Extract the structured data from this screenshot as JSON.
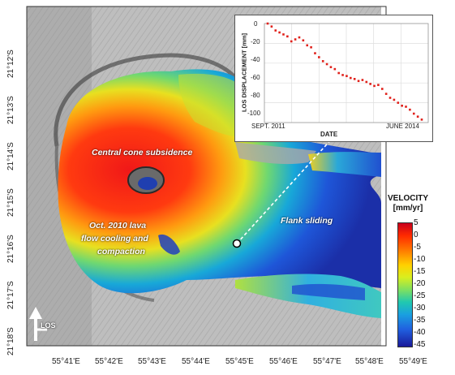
{
  "latitude_labels": [
    "21°12'S",
    "21°13'S",
    "21°14'S",
    "21°15'S",
    "21°16'S",
    "21°17'S",
    "21°18'S"
  ],
  "longitude_labels": [
    "55°41'E",
    "55°42'E",
    "55°43'E",
    "55°44'E",
    "55°45'E",
    "55°46'E",
    "55°47'E",
    "55°48'E",
    "55°49'E"
  ],
  "annotations": {
    "central_cone": "Central cone subsidence",
    "lava_flow_line1": "Oct. 2010 lava",
    "lava_flow_line2": "flow cooling and",
    "lava_flow_line3": "compaction",
    "flank_sliding": "Flank sliding"
  },
  "los_label": "LOS",
  "legend": {
    "title_line1": "VELOCITY",
    "title_line2": "[mm/yr]",
    "ticks": [
      "5",
      "0",
      "-5",
      "-10",
      "-15",
      "-20",
      "-25",
      "-30",
      "-35",
      "-40",
      "-45"
    ]
  },
  "inset": {
    "ylabel": "LOS DISPLACEMENT [mm]",
    "xlabel": "DATE",
    "x_start": "SEPT. 2011",
    "x_end": "JUNE 2014",
    "yticks": [
      "0",
      "-20",
      "-40",
      "-60",
      "-80",
      "-100"
    ]
  },
  "chart_data": {
    "type": "scatter",
    "xlabel": "DATE",
    "ylabel": "LOS DISPLACEMENT [mm]",
    "ylim": [
      -100,
      0
    ],
    "x_range": [
      "SEPT. 2011",
      "JUNE 2014"
    ],
    "point_color": "#e0201a",
    "grid": true,
    "values": [
      0,
      -3,
      -7,
      -9,
      -11,
      -13,
      -18,
      -16,
      -14,
      -17,
      -22,
      -24,
      -30,
      -34,
      -38,
      -41,
      -44,
      -46,
      -50,
      -52,
      -53,
      -55,
      -56,
      -58,
      -57,
      -59,
      -61,
      -63,
      -62,
      -66,
      -71,
      -75,
      -77,
      -80,
      -83,
      -84,
      -87,
      -91,
      -94,
      -97
    ]
  },
  "colors": {
    "dot_white": "#ffffff",
    "dashed_line": "#ffffff"
  }
}
